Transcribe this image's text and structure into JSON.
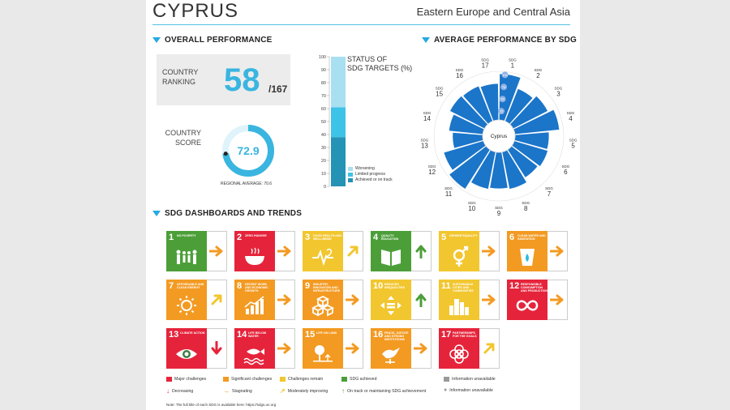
{
  "header": {
    "country": "CYPRUS",
    "region": "Eastern Europe and Central Asia"
  },
  "overall": {
    "heading": "OVERALL PERFORMANCE",
    "ranking_label_1": "COUNTRY",
    "ranking_label_2": "RANKING",
    "rank": "58",
    "rank_total": "/167",
    "score_label_1": "COUNTRY",
    "score_label_2": "SCORE",
    "score": "72.9",
    "score_value": 72.9,
    "regional_average_text": "REGIONAL AVERAGE: 70.6"
  },
  "status": {
    "title_1": "STATUS OF",
    "title_2": "SDG TARGETS (%)",
    "ticks": [
      "100",
      "90",
      "80",
      "70",
      "60",
      "50",
      "40",
      "30",
      "20",
      "10",
      "0"
    ],
    "segments": [
      {
        "name": "Achieved or on track",
        "value": 38,
        "color": "#2593b5"
      },
      {
        "name": "Limited progress",
        "value": 23,
        "color": "#3ec3e8"
      },
      {
        "name": "Worsening",
        "value": 39,
        "color": "#a8dff1"
      }
    ],
    "legend": [
      "Worsening",
      "Limited progress",
      "Achieved or on track"
    ]
  },
  "radar": {
    "heading": "AVERAGE PERFORMANCE BY SDG",
    "center_label": "Cyprus",
    "sdg_word": "SDG",
    "ring_labels": [
      "100",
      "75",
      "50",
      "25"
    ],
    "labels": [
      "1",
      "2",
      "3",
      "4",
      "5",
      "6",
      "7",
      "8",
      "9",
      "10",
      "11",
      "12",
      "13",
      "14",
      "15",
      "16",
      "17"
    ],
    "values": [
      95,
      72,
      80,
      92,
      70,
      72,
      68,
      78,
      75,
      78,
      96,
      85,
      62,
      70,
      80,
      78,
      75
    ],
    "fill_color": "#1b75c9"
  },
  "dashboard": {
    "heading": "SDG DASHBOARDS AND TRENDS",
    "tiles": [
      {
        "num": "1",
        "title": "NO POVERTY",
        "color": "#e5243b",
        "trend": "right",
        "trend_color": "#f39a22",
        "icon": "people-icon"
      },
      {
        "num": "2",
        "title": "ZERO HUNGER",
        "color": "#dda63a",
        "trend": "right",
        "trend_color": "#f39a22",
        "icon": "bowl-icon"
      },
      {
        "num": "3",
        "title": "GOOD HEALTH AND WELL-BEING",
        "color": "#4c9f38",
        "trend": "upright",
        "trend_color": "#f2c62f",
        "icon": "heartbeat-icon"
      },
      {
        "num": "4",
        "title": "QUALITY EDUCATION",
        "color": "#c5192d",
        "trend": "up",
        "trend_color": "#4c9f38",
        "icon": "book-icon"
      },
      {
        "num": "5",
        "title": "GENDER EQUALITY",
        "color": "#ff3a21",
        "trend": "right",
        "trend_color": "#f39a22",
        "icon": "gender-icon"
      },
      {
        "num": "6",
        "title": "CLEAN WATER AND SANITATION",
        "color": "#26bde2",
        "trend": "right",
        "trend_color": "#f39a22",
        "icon": "water-icon"
      },
      {
        "num": "7",
        "title": "AFFORDABLE AND CLEAN ENERGY",
        "color": "#fcc30b",
        "trend": "upright",
        "trend_color": "#f2c62f",
        "icon": "sun-icon"
      },
      {
        "num": "8",
        "title": "DECENT WORK AND ECONOMIC GROWTH",
        "color": "#a21942",
        "trend": "right",
        "trend_color": "#f39a22",
        "icon": "growth-chart-icon"
      },
      {
        "num": "9",
        "title": "INDUSTRY, INNOVATION AND INFRASTRUCTURE",
        "color": "#fd6925",
        "trend": "right",
        "trend_color": "#f39a22",
        "icon": "cubes-icon"
      },
      {
        "num": "10",
        "title": "REDUCED INEQUALITIES",
        "color": "#dd1367",
        "trend": "up",
        "trend_color": "#4c9f38",
        "icon": "equality-icon"
      },
      {
        "num": "11",
        "title": "SUSTAINABLE CITIES AND COMMUNITIES",
        "color": "#fd9d24",
        "trend": "right",
        "trend_color": "#f39a22",
        "icon": "city-icon"
      },
      {
        "num": "12",
        "title": "RESPONSIBLE CONSUMPTION AND PRODUCTION",
        "color": "#bf8b2e",
        "trend": "right",
        "trend_color": "#f39a22",
        "icon": "infinity-icon"
      },
      {
        "num": "13",
        "title": "CLIMATE ACTION",
        "color": "#3f7e44",
        "trend": "down",
        "trend_color": "#e5243b",
        "icon": "eye-globe-icon"
      },
      {
        "num": "14",
        "title": "LIFE BELOW WATER",
        "color": "#0a97d9",
        "trend": "right",
        "trend_color": "#f39a22",
        "icon": "fish-icon"
      },
      {
        "num": "15",
        "title": "LIFE ON LAND",
        "color": "#56c02b",
        "trend": "right",
        "trend_color": "#f39a22",
        "icon": "tree-icon"
      },
      {
        "num": "16",
        "title": "PEACE, JUSTICE AND STRONG INSTITUTIONS",
        "color": "#00689d",
        "trend": "right",
        "trend_color": "#f39a22",
        "icon": "dove-icon"
      },
      {
        "num": "17",
        "title": "PARTNERSHIPS FOR THE GOALS",
        "color": "#19486a",
        "trend": "upright",
        "trend_color": "#f2c62f",
        "icon": "rings-icon"
      }
    ],
    "tile_background_colors_by_dashboard": [
      "#4c9f38",
      "#e5243b",
      "#f2c62f",
      "#4c9f38",
      "#f2c62f",
      "#f39a22",
      "#f39a22",
      "#f39a22",
      "#f39a22",
      "#f2c62f",
      "#f2c62f",
      "#e5243b",
      "#e5243b",
      "#e5243b",
      "#f39a22",
      "#f39a22",
      "#e5243b"
    ]
  },
  "legend": {
    "major": "Major challenges",
    "significant": "Significant challenges",
    "remain": "Challenges remain",
    "achieved": "SDG achieved",
    "info_unavailable_1": "Information unavailable",
    "decreasing": "Decreasing",
    "stagnating": "Stagnating",
    "moderately": "Moderately improving",
    "on_track": "On track or maintaining SDG achievement",
    "info_unavailable_2": "Information unavailable"
  },
  "note": "Note: The full title of each SDG is available here: https://sdgs.un.org"
}
